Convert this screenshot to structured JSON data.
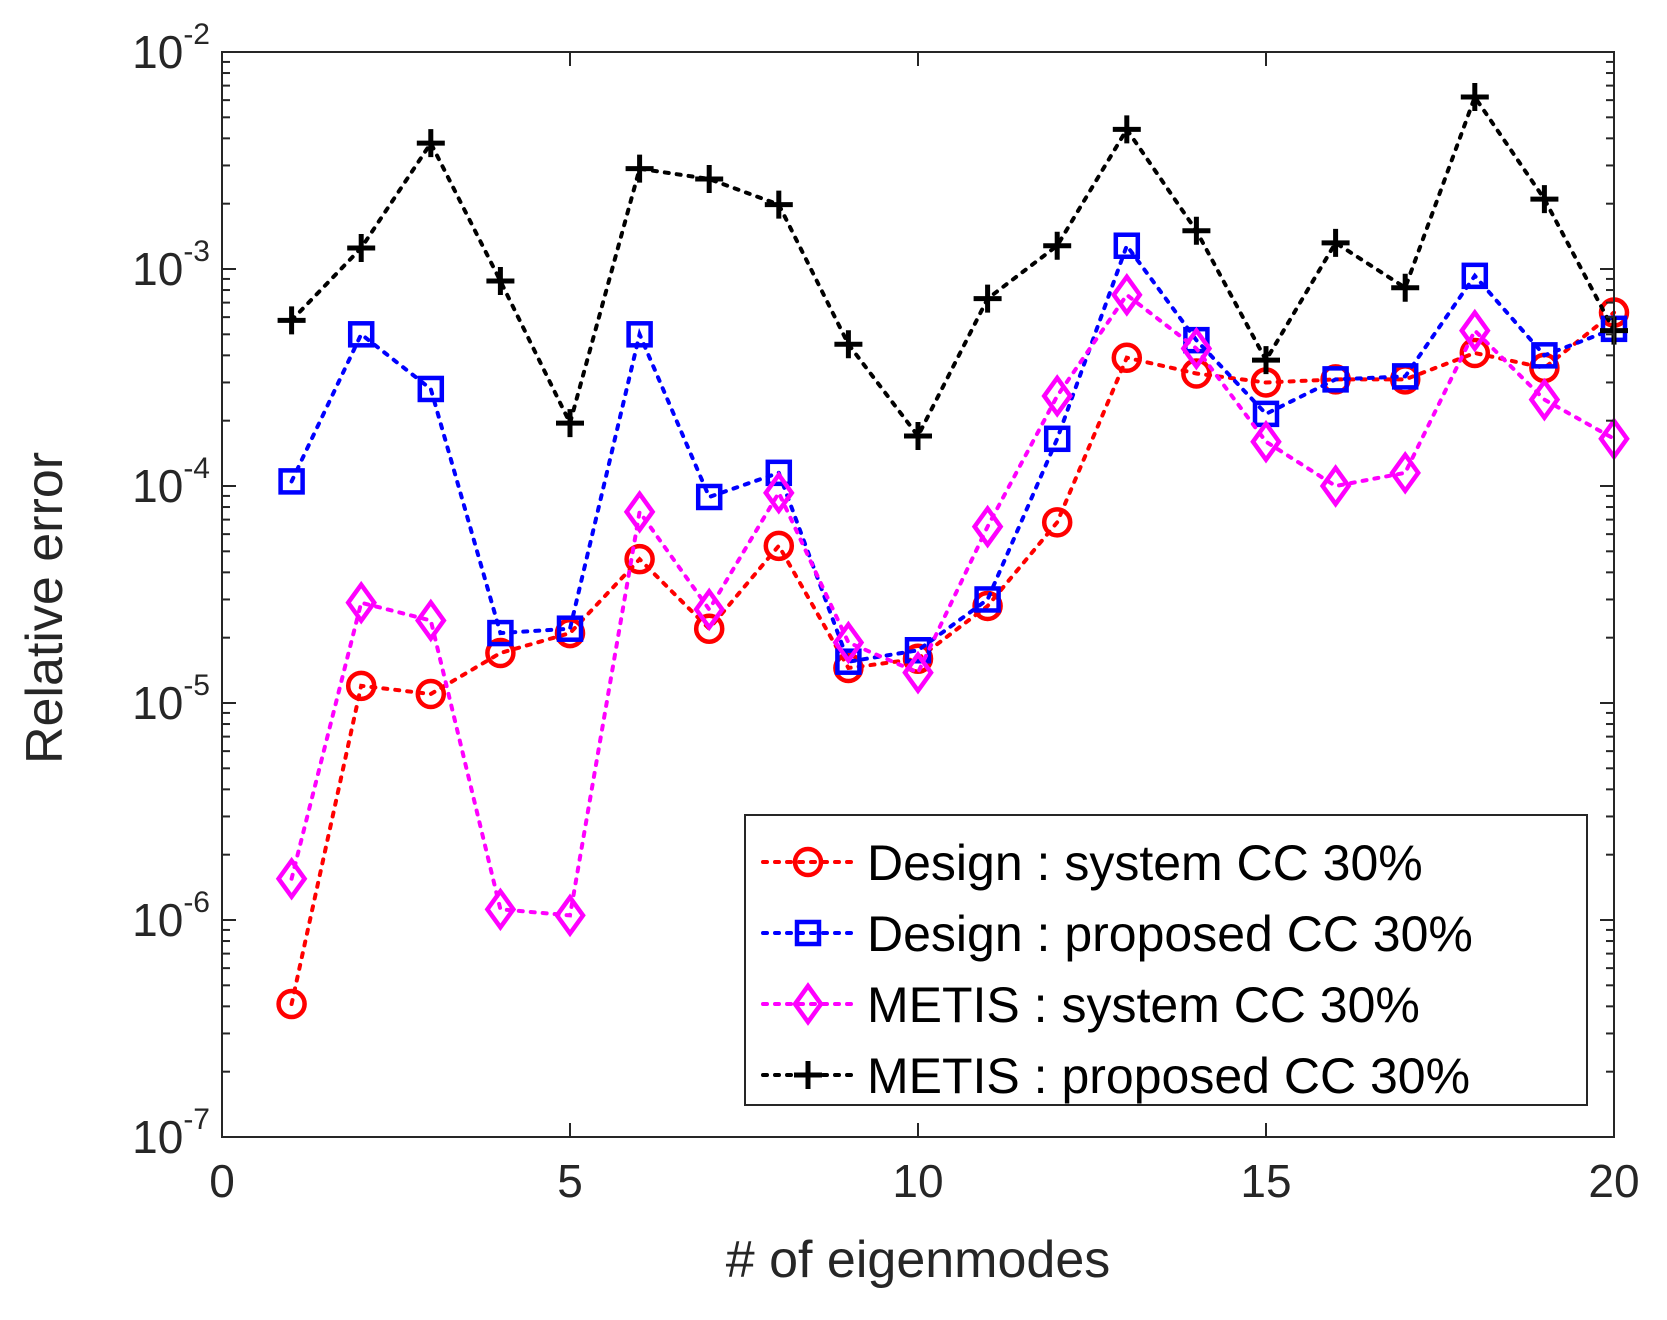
{
  "chart_data": {
    "type": "line",
    "xlabel": "# of eigenmodes",
    "ylabel": "Relative error",
    "xlim": [
      0,
      20
    ],
    "ylim": [
      1e-07,
      0.01
    ],
    "yscale": "log",
    "grid": false,
    "legend_position": "bottom-right",
    "x_ticks": [
      {
        "value": 0,
        "label": "0"
      },
      {
        "value": 5,
        "label": "5"
      },
      {
        "value": 10,
        "label": "10"
      },
      {
        "value": 15,
        "label": "15"
      },
      {
        "value": 20,
        "label": "20"
      }
    ],
    "y_ticks": [
      {
        "value": 1e-07,
        "base": "10",
        "exp": "-7"
      },
      {
        "value": 1e-06,
        "base": "10",
        "exp": "-6"
      },
      {
        "value": 1e-05,
        "base": "10",
        "exp": "-5"
      },
      {
        "value": 0.0001,
        "base": "10",
        "exp": "-4"
      },
      {
        "value": 0.001,
        "base": "10",
        "exp": "-3"
      },
      {
        "value": 0.01,
        "base": "10",
        "exp": "-2"
      }
    ],
    "x": [
      1,
      2,
      3,
      4,
      5,
      6,
      7,
      8,
      9,
      10,
      11,
      12,
      13,
      14,
      15,
      16,
      17,
      18,
      19,
      20
    ],
    "series": [
      {
        "name": "Design : system CC 30%",
        "color": "#ff0000",
        "marker": "circle",
        "values": [
          4.1e-07,
          1.2e-05,
          1.1e-05,
          1.7e-05,
          2.1e-05,
          4.6e-05,
          2.2e-05,
          5.3e-05,
          1.45e-05,
          1.6e-05,
          2.8e-05,
          6.8e-05,
          0.00039,
          0.00033,
          0.0003,
          0.00031,
          0.00031,
          0.00041,
          0.00035,
          0.00063
        ]
      },
      {
        "name": "Design : proposed CC 30%",
        "color": "#0000ff",
        "marker": "square",
        "values": [
          0.000105,
          0.0005,
          0.00028,
          2.1e-05,
          2.2e-05,
          0.0005,
          8.9e-05,
          0.000115,
          1.55e-05,
          1.75e-05,
          3e-05,
          0.000165,
          0.00128,
          0.00047,
          0.000215,
          0.00031,
          0.00032,
          0.00093,
          0.0004,
          0.00053
        ]
      },
      {
        "name": "METIS : system CC 30%",
        "color": "#ff00ff",
        "marker": "diamond",
        "values": [
          1.55e-06,
          2.9e-05,
          2.4e-05,
          1.12e-06,
          1.05e-06,
          7.6e-05,
          2.7e-05,
          9.3e-05,
          1.9e-05,
          1.38e-05,
          6.5e-05,
          0.00026,
          0.00076,
          0.00043,
          0.00016,
          0.0001,
          0.000115,
          0.00052,
          0.00025,
          0.000165
        ]
      },
      {
        "name": "METIS : proposed CC 30%",
        "color": "#000000",
        "marker": "plus",
        "values": [
          0.00058,
          0.00125,
          0.0038,
          0.00088,
          0.000195,
          0.0029,
          0.0026,
          0.00198,
          0.00045,
          0.00017,
          0.00073,
          0.00128,
          0.0044,
          0.0015,
          0.00038,
          0.00132,
          0.00082,
          0.0062,
          0.0021,
          0.00052
        ]
      }
    ]
  }
}
